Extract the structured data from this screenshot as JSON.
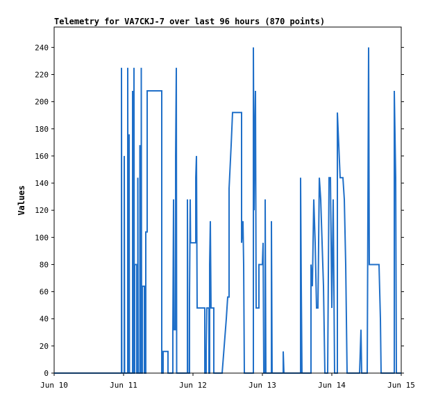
{
  "chart_data": {
    "type": "line",
    "title": "Telemetry for VA7CKJ-7 over last 96 hours (870 points)",
    "xlabel": "",
    "ylabel": "Values",
    "x_ticks": [
      "Jun 10",
      "Jun 11",
      "Jun 12",
      "Jun 13",
      "Jun 14",
      "Jun 15"
    ],
    "y_ticks": [
      0,
      20,
      40,
      60,
      80,
      100,
      120,
      140,
      160,
      180,
      200,
      220,
      240
    ],
    "xlim": [
      "Jun 10",
      "Jun 15"
    ],
    "ylim": [
      0,
      255
    ],
    "grid": false,
    "legend": "none",
    "line_color": "#1f6fc8",
    "series": [
      {
        "x_unit": "days since Jun 10",
        "points": [
          [
            0.0,
            0
          ],
          [
            0.97,
            0
          ],
          [
            0.97,
            225
          ],
          [
            0.975,
            0
          ],
          [
            1.01,
            0
          ],
          [
            1.01,
            160
          ],
          [
            1.015,
            0
          ],
          [
            1.06,
            0
          ],
          [
            1.06,
            225
          ],
          [
            1.065,
            0
          ],
          [
            1.08,
            0
          ],
          [
            1.08,
            176
          ],
          [
            1.085,
            0
          ],
          [
            1.13,
            0
          ],
          [
            1.13,
            208
          ],
          [
            1.135,
            0
          ],
          [
            1.15,
            0
          ],
          [
            1.15,
            225
          ],
          [
            1.155,
            0
          ],
          [
            1.16,
            0
          ],
          [
            1.16,
            80
          ],
          [
            1.19,
            80
          ],
          [
            1.19,
            0
          ],
          [
            1.205,
            0
          ],
          [
            1.205,
            144
          ],
          [
            1.21,
            0
          ],
          [
            1.235,
            0
          ],
          [
            1.235,
            168
          ],
          [
            1.24,
            0
          ],
          [
            1.255,
            0
          ],
          [
            1.255,
            225
          ],
          [
            1.26,
            0
          ],
          [
            1.27,
            0
          ],
          [
            1.27,
            64
          ],
          [
            1.3,
            64
          ],
          [
            1.3,
            0
          ],
          [
            1.32,
            0
          ],
          [
            1.32,
            104
          ],
          [
            1.33,
            104
          ],
          [
            1.34,
            104
          ],
          [
            1.34,
            208
          ],
          [
            1.55,
            208
          ],
          [
            1.55,
            0
          ],
          [
            1.57,
            0
          ],
          [
            1.57,
            16
          ],
          [
            1.64,
            16
          ],
          [
            1.64,
            0
          ],
          [
            1.71,
            0
          ],
          [
            1.71,
            32
          ],
          [
            1.72,
            128
          ],
          [
            1.73,
            32
          ],
          [
            1.75,
            32
          ],
          [
            1.75,
            160
          ],
          [
            1.76,
            225
          ],
          [
            1.765,
            0
          ],
          [
            1.92,
            0
          ],
          [
            1.92,
            128
          ],
          [
            1.925,
            0
          ],
          [
            1.95,
            0
          ],
          [
            1.95,
            56
          ],
          [
            1.96,
            128
          ],
          [
            1.965,
            96
          ],
          [
            2.04,
            96
          ],
          [
            2.04,
            144
          ],
          [
            2.05,
            160
          ],
          [
            2.06,
            48
          ],
          [
            2.15,
            48
          ],
          [
            2.16,
            48
          ],
          [
            2.17,
            48
          ],
          [
            2.17,
            0
          ],
          [
            2.19,
            0
          ],
          [
            2.19,
            16
          ],
          [
            2.2,
            48
          ],
          [
            2.23,
            48
          ],
          [
            2.23,
            0
          ],
          [
            2.24,
            0
          ],
          [
            2.24,
            80
          ],
          [
            2.25,
            112
          ],
          [
            2.26,
            48
          ],
          [
            2.3,
            48
          ],
          [
            2.3,
            0
          ],
          [
            2.31,
            0
          ],
          [
            2.31,
            0
          ],
          [
            2.42,
            0
          ],
          [
            2.48,
            40
          ],
          [
            2.5,
            56
          ],
          [
            2.52,
            56
          ],
          [
            2.52,
            136
          ],
          [
            2.55,
            168
          ],
          [
            2.57,
            192
          ],
          [
            2.7,
            192
          ],
          [
            2.7,
            96
          ],
          [
            2.72,
            112
          ],
          [
            2.73,
            80
          ],
          [
            2.74,
            0
          ],
          [
            2.87,
            0
          ],
          [
            2.87,
            240
          ],
          [
            2.88,
            120
          ],
          [
            2.89,
            176
          ],
          [
            2.9,
            208
          ],
          [
            2.91,
            48
          ],
          [
            2.95,
            48
          ],
          [
            2.95,
            80
          ],
          [
            3.0,
            80
          ],
          [
            3.01,
            96
          ],
          [
            3.02,
            0
          ],
          [
            3.04,
            0
          ],
          [
            3.04,
            128
          ],
          [
            3.05,
            0
          ],
          [
            3.13,
            0
          ],
          [
            3.13,
            112
          ],
          [
            3.14,
            0
          ],
          [
            3.3,
            0
          ],
          [
            3.3,
            16
          ],
          [
            3.31,
            0
          ],
          [
            3.55,
            0
          ],
          [
            3.55,
            144
          ],
          [
            3.56,
            64
          ],
          [
            3.57,
            0
          ],
          [
            3.7,
            0
          ],
          [
            3.7,
            80
          ],
          [
            3.72,
            64
          ],
          [
            3.74,
            128
          ],
          [
            3.76,
            96
          ],
          [
            3.78,
            48
          ],
          [
            3.8,
            48
          ],
          [
            3.82,
            144
          ],
          [
            3.84,
            128
          ],
          [
            3.86,
            96
          ],
          [
            3.88,
            64
          ],
          [
            3.9,
            0
          ],
          [
            3.94,
            0
          ],
          [
            3.96,
            144
          ],
          [
            3.98,
            144
          ],
          [
            4.0,
            48
          ],
          [
            4.02,
            128
          ],
          [
            4.04,
            0
          ],
          [
            4.08,
            0
          ],
          [
            4.08,
            192
          ],
          [
            4.1,
            168
          ],
          [
            4.12,
            144
          ],
          [
            4.16,
            144
          ],
          [
            4.18,
            128
          ],
          [
            4.2,
            80
          ],
          [
            4.22,
            0
          ],
          [
            4.4,
            0
          ],
          [
            4.42,
            32
          ],
          [
            4.43,
            0
          ],
          [
            4.51,
            0
          ],
          [
            4.53,
            240
          ],
          [
            4.54,
            80
          ],
          [
            4.68,
            80
          ],
          [
            4.7,
            40
          ],
          [
            4.71,
            0
          ],
          [
            4.9,
            0
          ],
          [
            4.9,
            208
          ],
          [
            4.92,
            144
          ],
          [
            4.93,
            0
          ],
          [
            5.0,
            0
          ]
        ]
      }
    ]
  }
}
